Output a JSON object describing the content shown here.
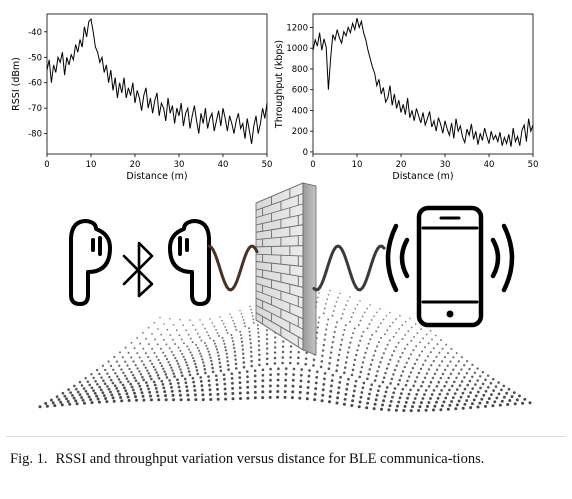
{
  "caption": {
    "label": "Fig. 1.",
    "text": "RSSI and throughput variation versus distance for BLE communica-tions."
  },
  "chart_data": [
    {
      "type": "line",
      "title": "",
      "xlabel": "Distance (m)",
      "ylabel": "RSSI (dBm)",
      "xlim": [
        0,
        50
      ],
      "ylim": [
        -88,
        -33
      ],
      "xticks": [
        0,
        10,
        20,
        30,
        40,
        50
      ],
      "yticks": [
        -40,
        -50,
        -60,
        -70,
        -80
      ],
      "grid": false,
      "series": [
        {
          "x": [
            0,
            0.5,
            1,
            1.5,
            2,
            2.5,
            3,
            3.5,
            4,
            4.5,
            5,
            5.5,
            6,
            6.5,
            7,
            7.5,
            8,
            8.5,
            9,
            9.5,
            10,
            10.5,
            11,
            11.5,
            12,
            12.5,
            13,
            13.5,
            14,
            14.5,
            15,
            15.5,
            16,
            16.5,
            17,
            17.5,
            18,
            18.5,
            19,
            19.5,
            20,
            20.5,
            21,
            21.5,
            22,
            22.5,
            23,
            23.5,
            24,
            24.5,
            25,
            25.5,
            26,
            26.5,
            27,
            27.5,
            28,
            28.5,
            29,
            29.5,
            30,
            30.5,
            31,
            31.5,
            32,
            32.5,
            33,
            33.5,
            34,
            34.5,
            35,
            35.5,
            36,
            36.5,
            37,
            37.5,
            38,
            38.5,
            39,
            39.5,
            40,
            40.5,
            41,
            41.5,
            42,
            42.5,
            43,
            43.5,
            44,
            44.5,
            45,
            45.5,
            46,
            46.5,
            47,
            47.5,
            48,
            48.5,
            49,
            49.5,
            50
          ],
          "y": [
            -55,
            -51,
            -60,
            -53,
            -56,
            -50,
            -52,
            -48,
            -57,
            -50,
            -53,
            -49,
            -51,
            -45,
            -48,
            -43,
            -46,
            -38,
            -42,
            -36,
            -35,
            -40,
            -46,
            -48,
            -52,
            -50,
            -56,
            -53,
            -60,
            -55,
            -63,
            -58,
            -66,
            -60,
            -64,
            -58,
            -66,
            -62,
            -65,
            -60,
            -68,
            -63,
            -66,
            -71,
            -65,
            -62,
            -70,
            -66,
            -72,
            -67,
            -64,
            -73,
            -68,
            -70,
            -75,
            -66,
            -72,
            -69,
            -76,
            -70,
            -73,
            -68,
            -77,
            -72,
            -70,
            -78,
            -73,
            -69,
            -75,
            -80,
            -72,
            -76,
            -70,
            -78,
            -74,
            -72,
            -79,
            -75,
            -71,
            -77,
            -70,
            -74,
            -79,
            -73,
            -76,
            -80,
            -75,
            -72,
            -78,
            -76,
            -82,
            -74,
            -79,
            -84,
            -77,
            -73,
            -80,
            -76,
            -70,
            -74,
            -68
          ]
        }
      ]
    },
    {
      "type": "line",
      "title": "",
      "xlabel": "Distance (m)",
      "ylabel": "Throughput (kbps)",
      "xlim": [
        0,
        50
      ],
      "ylim": [
        -20,
        1330
      ],
      "xticks": [
        0,
        10,
        20,
        30,
        40,
        50
      ],
      "yticks": [
        0,
        200,
        400,
        600,
        800,
        1000,
        1200
      ],
      "grid": false,
      "series": [
        {
          "x": [
            0,
            0.5,
            1,
            1.5,
            2,
            2.5,
            3,
            3.5,
            4,
            4.5,
            5,
            5.5,
            6,
            6.5,
            7,
            7.5,
            8,
            8.5,
            9,
            9.5,
            10,
            10.5,
            11,
            11.5,
            12,
            12.5,
            13,
            13.5,
            14,
            14.5,
            15,
            15.5,
            16,
            16.5,
            17,
            17.5,
            18,
            18.5,
            19,
            19.5,
            20,
            20.5,
            21,
            21.5,
            22,
            22.5,
            23,
            23.5,
            24,
            24.5,
            25,
            25.5,
            26,
            26.5,
            27,
            27.5,
            28,
            28.5,
            29,
            29.5,
            30,
            30.5,
            31,
            31.5,
            32,
            32.5,
            33,
            33.5,
            34,
            34.5,
            35,
            35.5,
            36,
            36.5,
            37,
            37.5,
            38,
            38.5,
            39,
            39.5,
            40,
            40.5,
            41,
            41.5,
            42,
            42.5,
            43,
            43.5,
            44,
            44.5,
            45,
            45.5,
            46,
            46.5,
            47,
            47.5,
            48,
            48.5,
            49,
            49.5,
            50
          ],
          "y": [
            980,
            1080,
            1020,
            1150,
            980,
            1090,
            1010,
            600,
            900,
            1130,
            1080,
            1180,
            1100,
            1050,
            1160,
            1120,
            1200,
            1150,
            1240,
            1180,
            1290,
            1200,
            1260,
            1150,
            1080,
            980,
            900,
            820,
            760,
            640,
            700,
            560,
            620,
            480,
            520,
            640,
            450,
            560,
            420,
            500,
            380,
            460,
            360,
            520,
            330,
            400,
            300,
            420,
            350,
            280,
            380,
            260,
            320,
            390,
            240,
            300,
            200,
            330,
            270,
            180,
            300,
            220,
            160,
            280,
            130,
            320,
            200,
            250,
            140,
            90,
            220,
            160,
            270,
            120,
            200,
            70,
            180,
            110,
            230,
            150,
            80,
            200,
            120,
            160,
            100,
            190,
            60,
            140,
            80,
            170,
            50,
            230,
            100,
            150,
            60,
            210,
            260,
            100,
            320,
            200,
            260
          ]
        }
      ]
    }
  ]
}
